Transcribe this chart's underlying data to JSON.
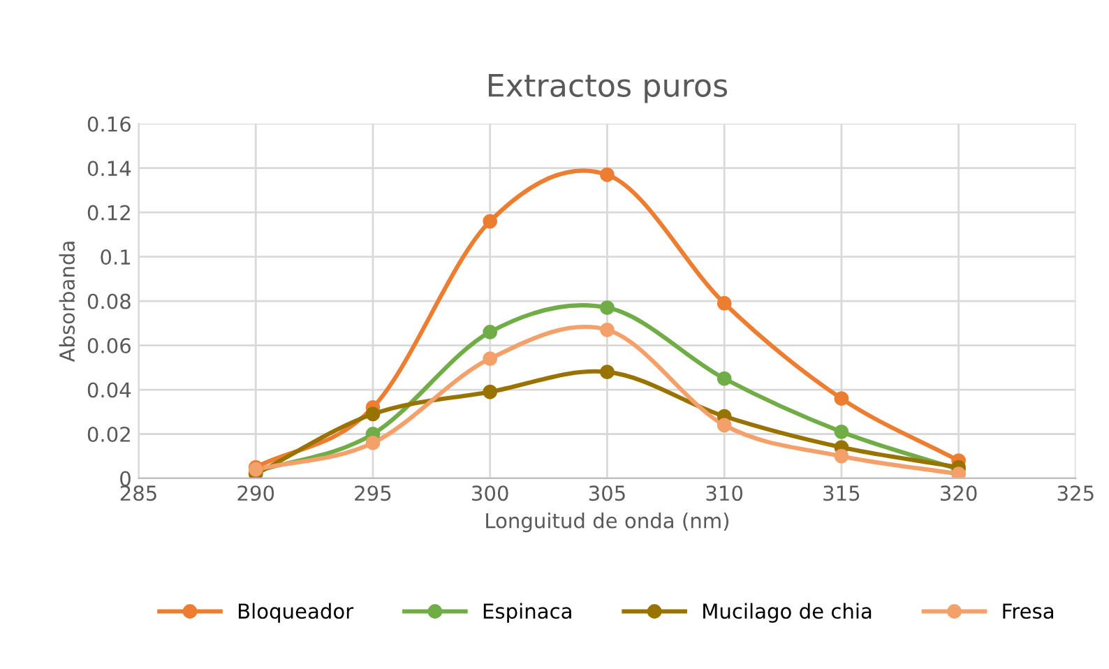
{
  "chart_data": {
    "type": "line",
    "title": "Extractos puros",
    "xlabel": "Longuitud de onda (nm)",
    "ylabel": "Absorbanda",
    "x": [
      290,
      295,
      300,
      305,
      310,
      315,
      320
    ],
    "series": [
      {
        "name": "Bloqueador",
        "color": "#ed7d31",
        "values": [
          0.005,
          0.032,
          0.116,
          0.137,
          0.079,
          0.036,
          0.008
        ]
      },
      {
        "name": "Espinaca",
        "color": "#70ad47",
        "values": [
          0.003,
          0.02,
          0.066,
          0.077,
          0.045,
          0.021,
          0.004
        ]
      },
      {
        "name": "Mucilago de chia",
        "color": "#997300",
        "values": [
          0.002,
          0.029,
          0.039,
          0.048,
          0.028,
          0.014,
          0.005
        ]
      },
      {
        "name": "Fresa",
        "color": "#f4a06a",
        "values": [
          0.004,
          0.016,
          0.054,
          0.067,
          0.024,
          0.01,
          0.002
        ]
      }
    ],
    "xlim": [
      285,
      325
    ],
    "xticks": [
      285,
      290,
      295,
      300,
      305,
      310,
      315,
      320,
      325
    ],
    "ylim": [
      0,
      0.16
    ],
    "yticks": [
      0,
      0.02,
      0.04,
      0.06,
      0.08,
      0.1,
      0.12,
      0.14,
      0.16
    ],
    "grid": true,
    "legend": "bottom",
    "marker": "circle",
    "line_style": "solid"
  }
}
